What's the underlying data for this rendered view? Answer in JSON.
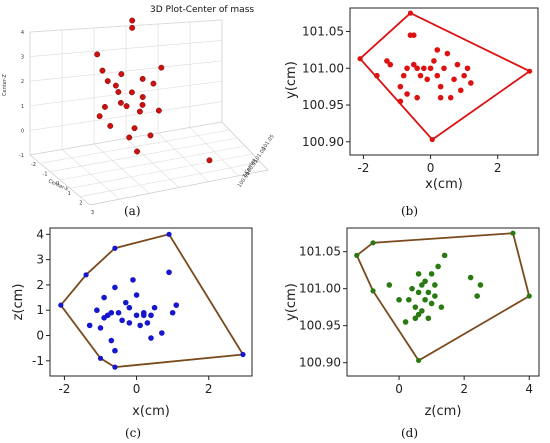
{
  "chart_data": [
    {
      "type": "scatter",
      "panel": "a",
      "title": "3D Plot-Center of mass",
      "xlabel": "Center-X",
      "ylabel": "Y-Center",
      "zlabel": "Center-Z",
      "z_ticks": [
        "4",
        "3",
        "2",
        "1",
        "0",
        "-1"
      ],
      "x_ticks": [
        "-2",
        "-1",
        "0",
        "1",
        "2",
        "3"
      ],
      "y_ticks": [
        "100.90",
        "100.95",
        "101.00",
        "101.05"
      ],
      "series": [
        {
          "color": "#cc1111",
          "points": [
            {
              "x": -0.6,
              "y": 101.04,
              "z": 3.7
            },
            {
              "x": -0.5,
              "y": 101.03,
              "z": 3.5
            },
            {
              "x": -1.6,
              "y": 101.01,
              "z": 2.6
            },
            {
              "x": -1.3,
              "y": 101.0,
              "z": 2.1
            },
            {
              "x": -1.0,
              "y": 100.99,
              "z": 1.8
            },
            {
              "x": -0.8,
              "y": 101.0,
              "z": 1.6
            },
            {
              "x": -0.5,
              "y": 100.98,
              "z": 1.5
            },
            {
              "x": -0.2,
              "y": 101.0,
              "z": 1.4
            },
            {
              "x": 0.1,
              "y": 101.01,
              "z": 1.2
            },
            {
              "x": 0.4,
              "y": 100.98,
              "z": 1.1
            },
            {
              "x": -0.9,
              "y": 100.97,
              "z": 1.0
            },
            {
              "x": -0.4,
              "y": 101.0,
              "z": 0.9
            },
            {
              "x": 0.2,
              "y": 100.99,
              "z": 0.8
            },
            {
              "x": 0.6,
              "y": 101.02,
              "z": 0.7
            },
            {
              "x": -1.2,
              "y": 100.98,
              "z": 0.6
            },
            {
              "x": -0.6,
              "y": 100.96,
              "z": 0.4
            },
            {
              "x": 0.0,
              "y": 100.99,
              "z": 0.2
            },
            {
              "x": 0.8,
              "y": 100.97,
              "z": 0.1
            },
            {
              "x": -0.3,
              "y": 101.0,
              "z": -0.2
            },
            {
              "x": 0.3,
              "y": 100.97,
              "z": -0.5
            },
            {
              "x": -0.8,
              "y": 101.02,
              "z": 1.9
            },
            {
              "x": 1.0,
              "y": 100.99,
              "z": 2.4
            },
            {
              "x": 0.2,
              "y": 101.0,
              "z": 1.9
            },
            {
              "x": 2.9,
              "y": 100.98,
              "z": -0.7
            },
            {
              "x": -0.1,
              "y": 100.95,
              "z": 1.3
            },
            {
              "x": 0.5,
              "y": 101.01,
              "z": 1.7
            }
          ]
        }
      ]
    },
    {
      "type": "scatter",
      "panel": "b",
      "xlabel": "x(cm)",
      "ylabel": "y(cm)",
      "xlim": [
        -2.4,
        3.2
      ],
      "ylim": [
        100.882,
        101.082
      ],
      "x_ticks": [
        -2,
        0,
        2
      ],
      "y_ticks": [
        100.9,
        100.95,
        101.0,
        101.05
      ],
      "y_tick_labels": [
        "100.90",
        "100.95",
        "101.00",
        "101.05"
      ],
      "point_color": "#dd1111",
      "hull_color": "#dd1111",
      "hull": [
        [
          -2.1,
          101.013
        ],
        [
          -0.6,
          101.075
        ],
        [
          2.95,
          100.996
        ],
        [
          0.05,
          100.903
        ]
      ],
      "points": [
        [
          -1.6,
          100.99
        ],
        [
          -1.3,
          101.01
        ],
        [
          -1.2,
          101.005
        ],
        [
          -0.9,
          100.975
        ],
        [
          -0.8,
          100.99
        ],
        [
          -0.7,
          100.965
        ],
        [
          -0.6,
          101.045
        ],
        [
          -0.5,
          101.045
        ],
        [
          -0.5,
          101.005
        ],
        [
          -0.4,
          101.0
        ],
        [
          -0.3,
          100.99
        ],
        [
          -0.2,
          101.0
        ],
        [
          -0.1,
          100.985
        ],
        [
          0.0,
          101.0
        ],
        [
          0.1,
          101.01
        ],
        [
          0.2,
          100.99
        ],
        [
          0.3,
          100.975
        ],
        [
          0.4,
          101.0
        ],
        [
          0.5,
          101.02
        ],
        [
          0.6,
          100.96
        ],
        [
          0.7,
          100.985
        ],
        [
          0.8,
          101.005
        ],
        [
          0.9,
          100.97
        ],
        [
          1.0,
          100.99
        ],
        [
          1.1,
          101.0
        ],
        [
          -0.9,
          100.955
        ],
        [
          -0.4,
          100.96
        ],
        [
          0.2,
          101.025
        ],
        [
          0.3,
          100.96
        ],
        [
          1.2,
          100.98
        ],
        [
          -0.7,
          101.0
        ]
      ]
    },
    {
      "type": "scatter",
      "panel": "c",
      "xlabel": "x(cm)",
      "ylabel": "z(cm)",
      "xlim": [
        -2.4,
        3.2
      ],
      "ylim": [
        -1.6,
        4.25
      ],
      "x_ticks": [
        -2,
        0,
        2
      ],
      "y_ticks": [
        -1,
        0,
        1,
        2,
        3,
        4
      ],
      "y_tick_labels": [
        "-1",
        "0",
        "1",
        "2",
        "3",
        "4"
      ],
      "point_color": "#1616cc",
      "hull_color": "#7a4a1c",
      "hull": [
        [
          -2.1,
          1.2
        ],
        [
          -1.4,
          2.4
        ],
        [
          -0.6,
          3.45
        ],
        [
          0.9,
          4.0
        ],
        [
          2.95,
          -0.75
        ],
        [
          -0.6,
          -1.25
        ],
        [
          -1.0,
          -0.9
        ]
      ],
      "points": [
        [
          -1.3,
          0.4
        ],
        [
          -1.1,
          1.0
        ],
        [
          -1.0,
          0.3
        ],
        [
          -0.9,
          1.5
        ],
        [
          -0.8,
          0.8
        ],
        [
          -0.7,
          -0.2
        ],
        [
          -0.6,
          1.9
        ],
        [
          -0.5,
          0.9
        ],
        [
          -0.4,
          0.6
        ],
        [
          -0.3,
          1.3
        ],
        [
          -0.2,
          0.5
        ],
        [
          -0.1,
          2.2
        ],
        [
          0.0,
          0.8
        ],
        [
          0.0,
          1.6
        ],
        [
          0.1,
          0.4
        ],
        [
          0.2,
          0.9
        ],
        [
          0.3,
          0.5
        ],
        [
          0.4,
          -0.1
        ],
        [
          0.5,
          1.1
        ],
        [
          0.7,
          0.1
        ],
        [
          0.9,
          2.5
        ],
        [
          1.0,
          0.9
        ],
        [
          1.1,
          1.2
        ],
        [
          -0.7,
          0.9
        ],
        [
          0.2,
          0.8
        ],
        [
          -0.2,
          1.1
        ],
        [
          -0.6,
          -0.6
        ],
        [
          0.4,
          0.8
        ],
        [
          -0.9,
          0.7
        ]
      ]
    },
    {
      "type": "scatter",
      "panel": "d",
      "xlabel": "z(cm)",
      "ylabel": "y(cm)",
      "xlim": [
        -1.6,
        4.3
      ],
      "ylim": [
        100.882,
        101.082
      ],
      "x_ticks": [
        0,
        2,
        4
      ],
      "y_ticks": [
        100.9,
        100.95,
        101.0,
        101.05
      ],
      "y_tick_labels": [
        "100.90",
        "100.95",
        "101.00",
        "101.05"
      ],
      "point_color": "#2a7a12",
      "hull_color": "#7a4a1c",
      "hull": [
        [
          -1.3,
          101.045
        ],
        [
          -0.8,
          101.062
        ],
        [
          3.5,
          101.075
        ],
        [
          4.0,
          100.99
        ],
        [
          0.6,
          100.903
        ],
        [
          -0.8,
          100.997
        ]
      ],
      "points": [
        [
          -0.3,
          101.005
        ],
        [
          0.0,
          100.985
        ],
        [
          0.2,
          100.955
        ],
        [
          0.4,
          101.0
        ],
        [
          0.5,
          100.975
        ],
        [
          0.5,
          100.96
        ],
        [
          0.6,
          100.995
        ],
        [
          0.6,
          101.02
        ],
        [
          0.7,
          100.97
        ],
        [
          0.7,
          101.005
        ],
        [
          0.8,
          100.985
        ],
        [
          0.8,
          101.01
        ],
        [
          0.9,
          100.995
        ],
        [
          0.9,
          100.96
        ],
        [
          1.0,
          101.02
        ],
        [
          1.0,
          100.98
        ],
        [
          1.1,
          101.005
        ],
        [
          1.1,
          100.99
        ],
        [
          1.2,
          101.03
        ],
        [
          1.3,
          100.975
        ],
        [
          1.4,
          101.045
        ],
        [
          2.2,
          101.015
        ],
        [
          2.4,
          100.99
        ],
        [
          2.5,
          101.005
        ],
        [
          0.3,
          100.985
        ],
        [
          0.6,
          100.965
        ]
      ]
    }
  ],
  "captions": {
    "a": "(a)",
    "b": "(b)",
    "c": "(c)",
    "d": "(d)"
  }
}
